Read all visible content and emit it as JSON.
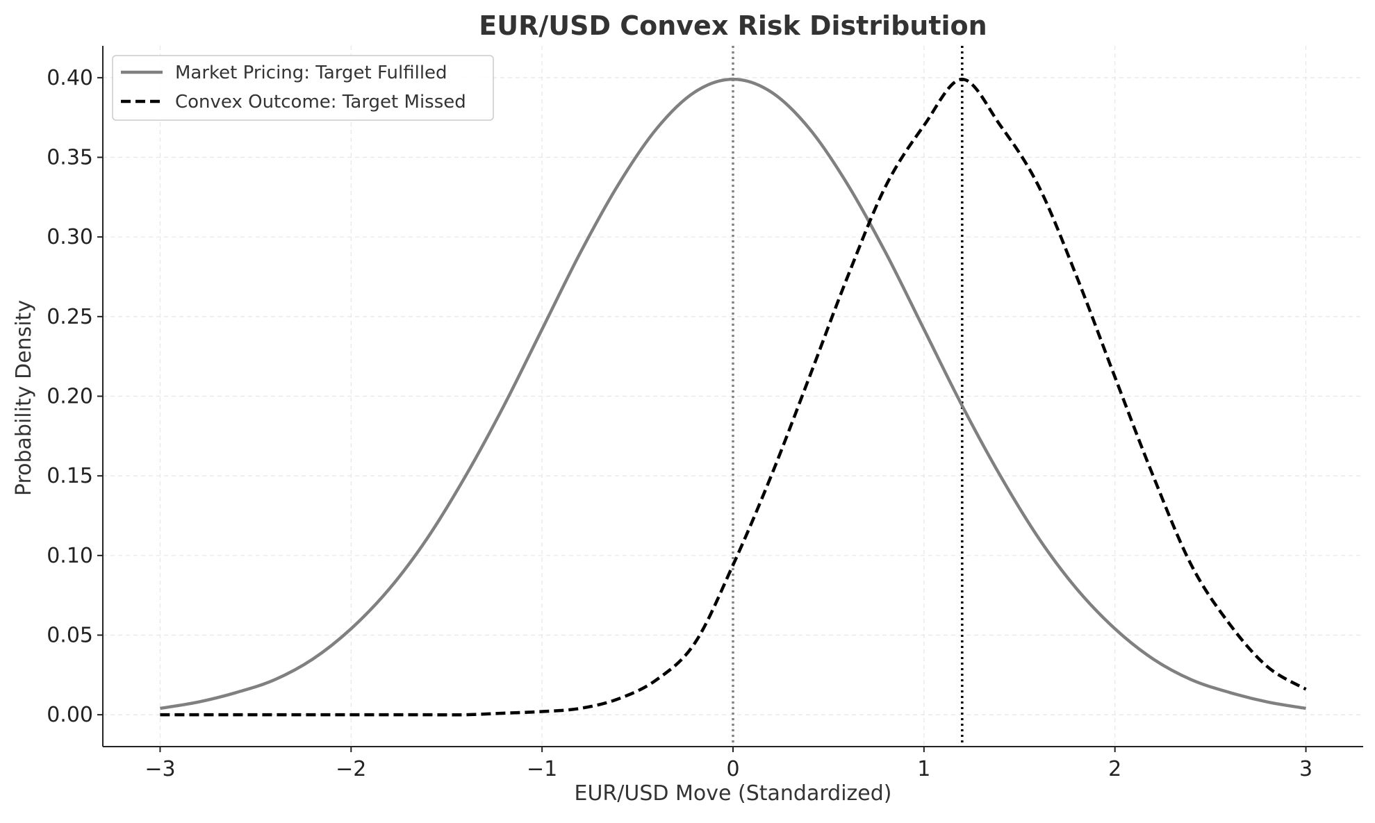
{
  "chart_data": {
    "type": "line",
    "title": "EUR/USD Convex Risk Distribution",
    "xlabel": "EUR/USD Move (Standardized)",
    "ylabel": "Probability Density",
    "xlim": [
      -3.3,
      3.3
    ],
    "ylim": [
      -0.02,
      0.42
    ],
    "xticks": [
      -3,
      -2,
      -1,
      0,
      1,
      2,
      3
    ],
    "xtick_labels": [
      "−3",
      "−2",
      "−1",
      "0",
      "1",
      "2",
      "3"
    ],
    "yticks": [
      0.0,
      0.05,
      0.1,
      0.15,
      0.2,
      0.25,
      0.3,
      0.35,
      0.4
    ],
    "ytick_labels": [
      "0.00",
      "0.05",
      "0.10",
      "0.15",
      "0.20",
      "0.25",
      "0.30",
      "0.35",
      "0.40"
    ],
    "grid": true,
    "legend_position": "top-left",
    "x": [
      -3.0,
      -2.8,
      -2.6,
      -2.4,
      -2.2,
      -2.0,
      -1.8,
      -1.6,
      -1.4,
      -1.2,
      -1.0,
      -0.8,
      -0.6,
      -0.4,
      -0.2,
      0.0,
      0.2,
      0.4,
      0.6,
      0.8,
      1.0,
      1.2,
      1.4,
      1.6,
      1.8,
      2.0,
      2.2,
      2.4,
      2.6,
      2.8,
      3.0
    ],
    "series": [
      {
        "name": "Market Pricing: Target Fulfilled",
        "color": "#808080",
        "style": "solid",
        "values": [
          0.004,
          0.008,
          0.014,
          0.022,
          0.035,
          0.054,
          0.079,
          0.111,
          0.15,
          0.194,
          0.242,
          0.29,
          0.333,
          0.368,
          0.391,
          0.399,
          0.391,
          0.368,
          0.333,
          0.29,
          0.242,
          0.194,
          0.15,
          0.111,
          0.079,
          0.054,
          0.035,
          0.022,
          0.014,
          0.008,
          0.004
        ]
      },
      {
        "name": "Convex Outcome: Target Missed",
        "color": "#000000",
        "style": "dashed",
        "values": [
          0.0,
          0.0,
          0.0,
          0.0,
          0.0,
          0.0,
          0.0,
          0.0,
          0.0,
          0.001,
          0.002,
          0.004,
          0.01,
          0.022,
          0.045,
          0.094,
          0.15,
          0.212,
          0.275,
          0.332,
          0.37,
          0.399,
          0.37,
          0.332,
          0.275,
          0.212,
          0.15,
          0.094,
          0.057,
          0.03,
          0.016
        ]
      }
    ],
    "vlines": [
      {
        "x": 0.0,
        "color": "#808080",
        "style": "dotted"
      },
      {
        "x": 1.2,
        "color": "#000000",
        "style": "dotted"
      }
    ]
  }
}
